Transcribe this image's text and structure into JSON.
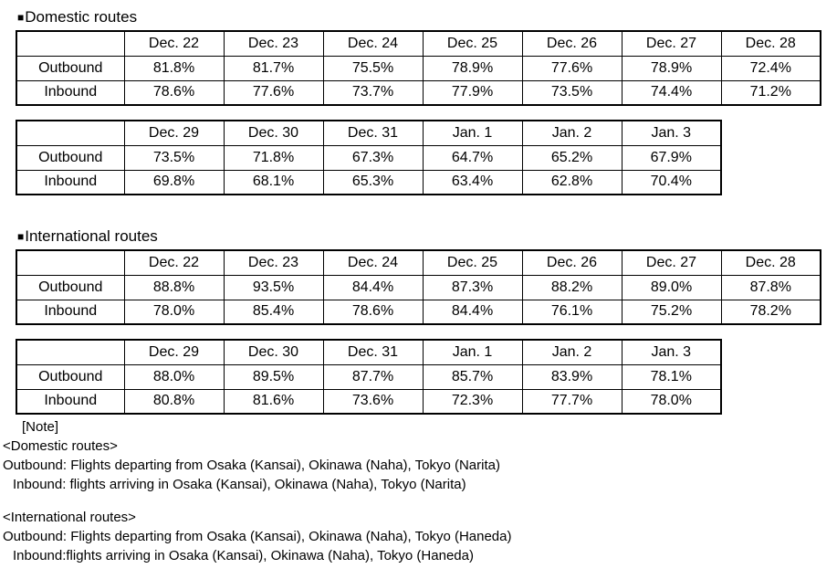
{
  "page": {
    "background": "#ffffff",
    "text_color": "#000000",
    "border_color": "#000000"
  },
  "sections": [
    {
      "id": "domestic",
      "bullet": "■",
      "title": "Domestic routes",
      "tables": [
        {
          "columns": [
            "",
            "Dec. 22",
            "Dec. 23",
            "Dec. 24",
            "Dec. 25",
            "Dec. 26",
            "Dec. 27",
            "Dec. 28"
          ],
          "rows": [
            {
              "label": "Outbound",
              "values": [
                "81.8%",
                "81.7%",
                "75.5%",
                "78.9%",
                "77.6%",
                "78.9%",
                "72.4%"
              ]
            },
            {
              "label": "Inbound",
              "values": [
                "78.6%",
                "77.6%",
                "73.7%",
                "77.9%",
                "73.5%",
                "74.4%",
                "71.2%"
              ]
            }
          ]
        },
        {
          "columns": [
            "",
            "Dec. 29",
            "Dec. 30",
            "Dec. 31",
            "Jan. 1",
            "Jan. 2",
            "Jan. 3"
          ],
          "rows": [
            {
              "label": "Outbound",
              "values": [
                "73.5%",
                "71.8%",
                "67.3%",
                "64.7%",
                "65.2%",
                "67.9%"
              ]
            },
            {
              "label": "Inbound",
              "values": [
                "69.8%",
                "68.1%",
                "65.3%",
                "63.4%",
                "62.8%",
                "70.4%"
              ]
            }
          ]
        }
      ]
    },
    {
      "id": "international",
      "bullet": "■",
      "title": "International routes",
      "tables": [
        {
          "columns": [
            "",
            "Dec. 22",
            "Dec. 23",
            "Dec. 24",
            "Dec. 25",
            "Dec. 26",
            "Dec. 27",
            "Dec. 28"
          ],
          "rows": [
            {
              "label": "Outbound",
              "values": [
                "88.8%",
                "93.5%",
                "84.4%",
                "87.3%",
                "88.2%",
                "89.0%",
                "87.8%"
              ]
            },
            {
              "label": "Inbound",
              "values": [
                "78.0%",
                "85.4%",
                "78.6%",
                "84.4%",
                "76.1%",
                "75.2%",
                "78.2%"
              ]
            }
          ]
        },
        {
          "columns": [
            "",
            "Dec. 29",
            "Dec. 30",
            "Dec. 31",
            "Jan. 1",
            "Jan. 2",
            "Jan. 3"
          ],
          "rows": [
            {
              "label": "Outbound",
              "values": [
                "88.0%",
                "89.5%",
                "87.7%",
                "85.7%",
                "83.9%",
                "78.1%"
              ]
            },
            {
              "label": "Inbound",
              "values": [
                "80.8%",
                "81.6%",
                "73.6%",
                "72.3%",
                "77.7%",
                "78.0%"
              ]
            }
          ]
        }
      ]
    }
  ],
  "notes": {
    "label": "[Note]",
    "groups": [
      {
        "heading": "<Domestic routes>",
        "lines": [
          "Outbound: Flights departing from Osaka (Kansai), Okinawa (Naha), Tokyo (Narita)",
          "Inbound: flights arriving in Osaka (Kansai), Okinawa (Naha), Tokyo (Narita)"
        ]
      },
      {
        "heading": "<International routes>",
        "lines": [
          "Outbound: Flights departing from Osaka (Kansai), Okinawa (Naha), Tokyo (Haneda)",
          "Inbound:flights arriving in Osaka (Kansai), Okinawa (Naha), Tokyo (Haneda)"
        ]
      }
    ]
  }
}
